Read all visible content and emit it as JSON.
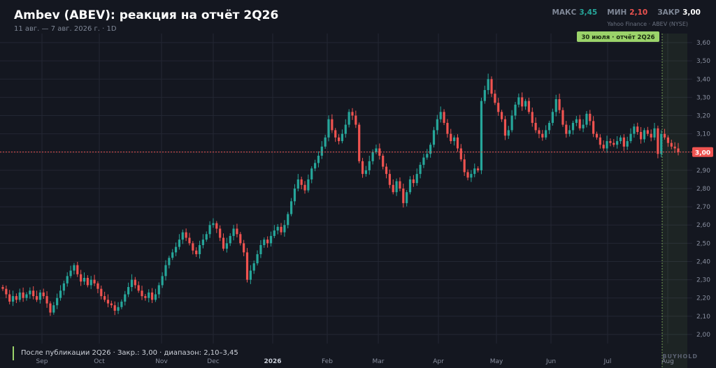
{
  "header": {
    "title": "Ambev (ABEV): реакция на отчёт 2Q26",
    "subtitle": "11 авг. — 7 авг. 2026 г. · 1D",
    "max_label": "МАКС",
    "max_value": "3,45",
    "min_label": "МИН",
    "min_value": "2,10",
    "close_label": "ЗАКР",
    "close_value": "3,00",
    "source": "Yahoo Finance · ABEV (NYSE)"
  },
  "footer": {
    "note": "После публикации 2Q26 · Закр.: 3,00 · диапазон: 2,10–3,45",
    "watermark": "BUYHOLD"
  },
  "colors": {
    "up": "#26a69a",
    "down": "#ef5350",
    "background": "#141720",
    "grid": "#232733",
    "highlight": "#9bd36a",
    "close_line": "#ef5350"
  },
  "chart_data": {
    "type": "candlestick",
    "ylim": [
      1.95,
      3.65
    ],
    "y_ticks": [
      "2,00",
      "2,10",
      "2,20",
      "2,30",
      "2,40",
      "2,50",
      "2,60",
      "2,70",
      "2,80",
      "2,90",
      "3,00",
      "3,10",
      "3,20",
      "3,30",
      "3,40",
      "3,50",
      "3,60"
    ],
    "x_ticks": [
      "Sep",
      "Oct",
      "Nov",
      "Dec",
      "2026",
      "Feb",
      "Mar",
      "Apr",
      "May",
      "Jun",
      "Jul",
      "Aug"
    ],
    "x_tick_bold": "2026",
    "last_close": 3.0,
    "last_close_label": "3,00",
    "event": {
      "label": "30 июля · отчёт 2Q26",
      "date": "2026-07-30"
    },
    "closes": [
      2.25,
      2.22,
      2.18,
      2.21,
      2.19,
      2.23,
      2.2,
      2.22,
      2.24,
      2.21,
      2.19,
      2.23,
      2.21,
      2.17,
      2.12,
      2.16,
      2.2,
      2.24,
      2.28,
      2.32,
      2.35,
      2.38,
      2.33,
      2.29,
      2.31,
      2.27,
      2.3,
      2.28,
      2.25,
      2.21,
      2.19,
      2.17,
      2.16,
      2.13,
      2.15,
      2.18,
      2.22,
      2.26,
      2.3,
      2.27,
      2.24,
      2.21,
      2.2,
      2.23,
      2.19,
      2.22,
      2.27,
      2.32,
      2.38,
      2.42,
      2.45,
      2.48,
      2.52,
      2.56,
      2.53,
      2.5,
      2.46,
      2.44,
      2.49,
      2.52,
      2.55,
      2.6,
      2.61,
      2.58,
      2.53,
      2.47,
      2.5,
      2.54,
      2.58,
      2.55,
      2.5,
      2.45,
      2.3,
      2.35,
      2.39,
      2.44,
      2.49,
      2.52,
      2.5,
      2.54,
      2.57,
      2.59,
      2.56,
      2.6,
      2.66,
      2.73,
      2.8,
      2.85,
      2.82,
      2.79,
      2.85,
      2.91,
      2.94,
      2.98,
      3.03,
      3.08,
      3.18,
      3.12,
      3.08,
      3.06,
      3.1,
      3.15,
      3.22,
      3.2,
      3.15,
      2.95,
      2.88,
      2.9,
      2.95,
      3.0,
      3.02,
      2.98,
      2.92,
      2.88,
      2.82,
      2.78,
      2.84,
      2.8,
      2.72,
      2.78,
      2.85,
      2.83,
      2.88,
      2.93,
      2.97,
      2.99,
      3.04,
      3.12,
      3.18,
      3.22,
      3.16,
      3.1,
      3.06,
      3.08,
      3.02,
      2.96,
      2.89,
      2.86,
      2.88,
      2.91,
      2.9,
      3.28,
      3.34,
      3.4,
      3.32,
      3.27,
      3.22,
      3.18,
      3.09,
      3.12,
      3.2,
      3.26,
      3.3,
      3.25,
      3.28,
      3.22,
      3.16,
      3.12,
      3.1,
      3.08,
      3.12,
      3.16,
      3.22,
      3.29,
      3.23,
      3.15,
      3.1,
      3.12,
      3.16,
      3.18,
      3.13,
      3.15,
      3.21,
      3.17,
      3.1,
      3.08,
      3.04,
      3.02,
      3.06,
      3.05,
      3.04,
      3.06,
      3.08,
      3.03,
      3.06,
      3.1,
      3.14,
      3.11,
      3.07,
      3.12,
      3.1,
      3.08,
      3.13,
      2.99,
      3.1,
      3.08,
      3.05,
      3.03,
      3.02,
      3.0
    ]
  }
}
